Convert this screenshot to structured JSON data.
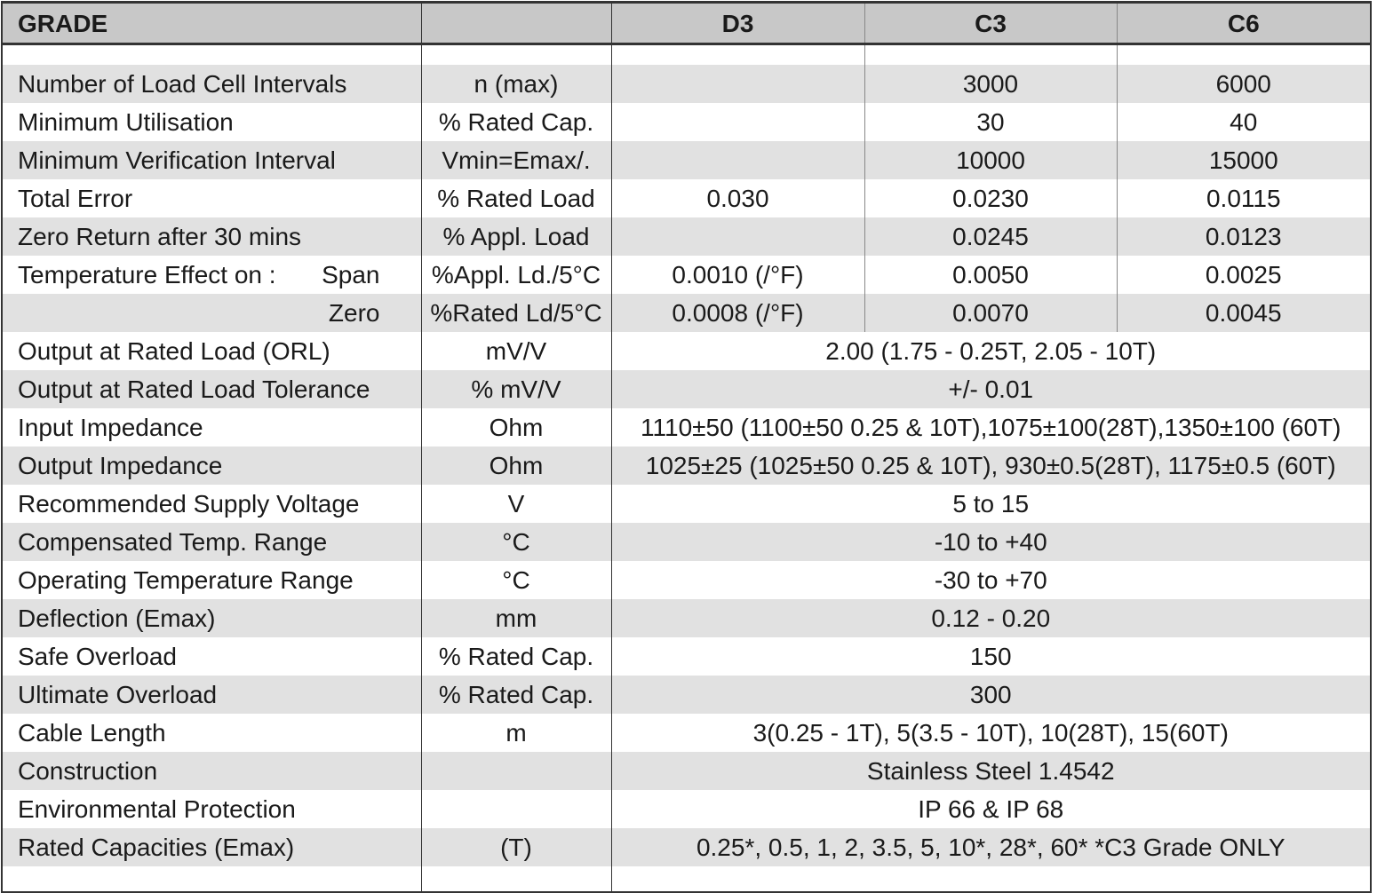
{
  "header": {
    "grade": "GRADE",
    "unit": "",
    "grades": [
      "D3",
      "C3",
      "C6"
    ]
  },
  "rows_split": [
    {
      "label": "Number of Load Cell Intervals",
      "unit": "n (max)",
      "d3": "",
      "c3": "3000",
      "c6": "6000"
    },
    {
      "label": "Minimum Utilisation",
      "unit": "% Rated Cap.",
      "d3": "",
      "c3": "30",
      "c6": "40"
    },
    {
      "label": "Minimum Verification Interval",
      "unit": "Vmin=Emax/.",
      "d3": "",
      "c3": "10000",
      "c6": "15000"
    },
    {
      "label": "Total Error",
      "unit": "% Rated Load",
      "d3": "0.030",
      "c3": "0.0230",
      "c6": "0.0115"
    },
    {
      "label": "Zero Return after 30 mins",
      "unit": "% Appl. Load",
      "d3": "",
      "c3": "0.0245",
      "c6": "0.0123"
    },
    {
      "label": "Temperature Effect on :",
      "sublabel": "Span",
      "unit": "%Appl. Ld./5°C",
      "d3": "0.0010 (/°F)",
      "c3": "0.0050",
      "c6": "0.0025"
    },
    {
      "label": "",
      "sublabel": "Zero",
      "unit": "%Rated Ld/5°C",
      "d3": "0.0008 (/°F)",
      "c3": "0.0070",
      "c6": "0.0045"
    }
  ],
  "rows_merged": [
    {
      "label": "Output at Rated Load (ORL)",
      "unit": "mV/V",
      "value": "2.00 (1.75 - 0.25T, 2.05 - 10T)"
    },
    {
      "label": "Output at Rated Load Tolerance",
      "unit": "% mV/V",
      "value": "+/- 0.01"
    },
    {
      "label": "Input Impedance",
      "unit": "Ohm",
      "value": "1110±50 (1100±50 0.25 & 10T),1075±100(28T),1350±100 (60T)"
    },
    {
      "label": "Output Impedance",
      "unit": "Ohm",
      "value": "1025±25 (1025±50 0.25 & 10T), 930±0.5(28T), 1175±0.5 (60T)"
    },
    {
      "label": "Recommended Supply Voltage",
      "unit": "V",
      "value": "5 to 15"
    },
    {
      "label": "Compensated Temp. Range",
      "unit": "°C",
      "value": "-10 to +40"
    },
    {
      "label": "Operating Temperature Range",
      "unit": "°C",
      "value": "-30 to +70"
    },
    {
      "label": "Deflection (Emax)",
      "unit": "mm",
      "value": "0.12 - 0.20"
    },
    {
      "label": "Safe Overload",
      "unit": "% Rated Cap.",
      "value": "150"
    },
    {
      "label": "Ultimate Overload",
      "unit": "% Rated Cap.",
      "value": "300"
    },
    {
      "label": "Cable Length",
      "unit": "m",
      "value": "3(0.25 - 1T), 5(3.5 - 10T), 10(28T), 15(60T)"
    },
    {
      "label": "Construction",
      "unit": "",
      "value": "Stainless Steel 1.4542"
    },
    {
      "label": "Environmental Protection",
      "unit": "",
      "value": "IP 66 & IP 68"
    },
    {
      "label": "Rated Capacities (Emax)",
      "unit": "(T)",
      "value": "0.25*, 0.5, 1, 2, 3.5, 5, 10*, 28*, 60*   *C3 Grade ONLY"
    }
  ]
}
